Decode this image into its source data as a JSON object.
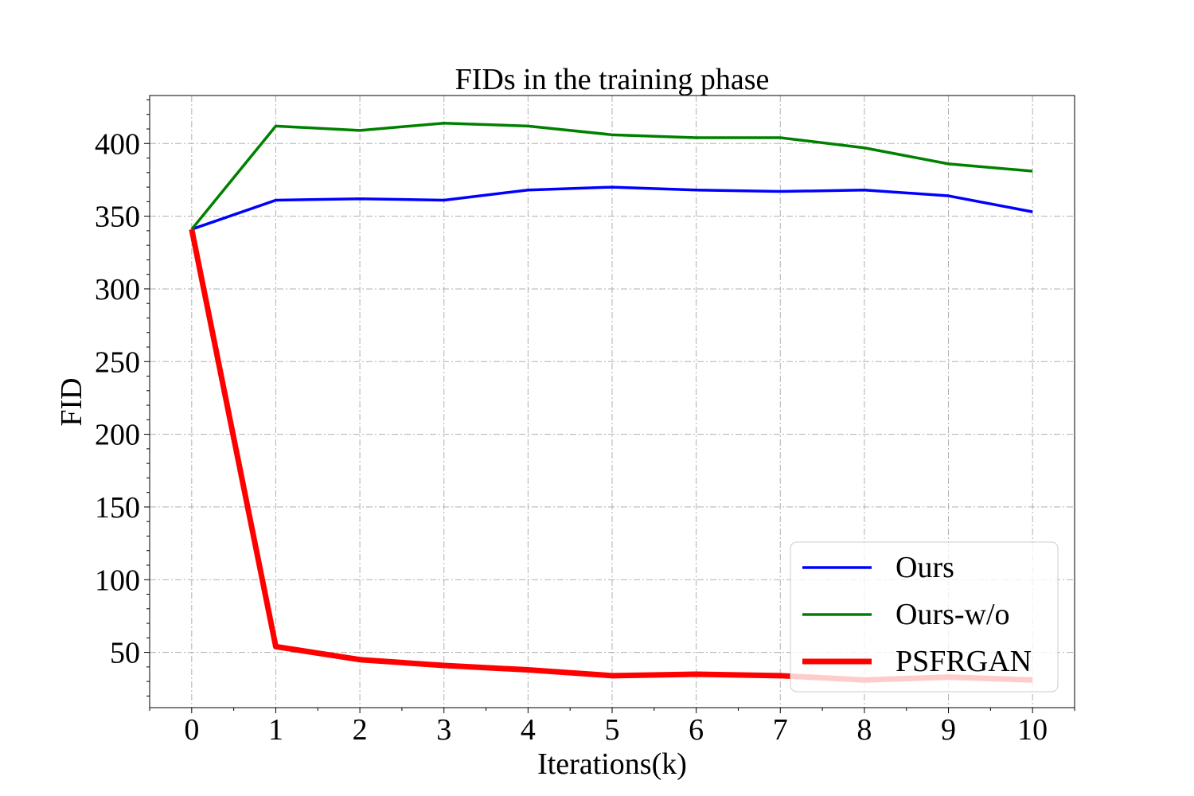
{
  "chart_data": {
    "type": "line",
    "title": "FIDs in the training phase",
    "xlabel": "Iterations(k)",
    "ylabel": "FID",
    "x": [
      0,
      1,
      2,
      3,
      4,
      5,
      6,
      7,
      8,
      9,
      10
    ],
    "xlim": [
      -0.5,
      10.5
    ],
    "ylim": [
      12,
      433
    ],
    "xticks": [
      "0",
      "1",
      "2",
      "3",
      "4",
      "5",
      "6",
      "7",
      "8",
      "9",
      "10"
    ],
    "yticks": [
      50,
      100,
      150,
      200,
      250,
      300,
      350,
      400
    ],
    "grid": true,
    "legend_position": "lower-right",
    "series": [
      {
        "name": "Ours",
        "color": "#0000ff",
        "values": [
          341,
          361,
          362,
          361,
          368,
          370,
          368,
          367,
          368,
          364,
          353
        ]
      },
      {
        "name": "Ours-w/o",
        "color": "#008000",
        "values": [
          341,
          412,
          409,
          414,
          412,
          406,
          404,
          404,
          397,
          386,
          381
        ]
      },
      {
        "name": "PSFRGAN",
        "color": "#ff0000",
        "values": [
          341,
          54,
          45,
          41,
          38,
          34,
          35,
          34,
          31,
          33,
          31
        ]
      }
    ]
  }
}
